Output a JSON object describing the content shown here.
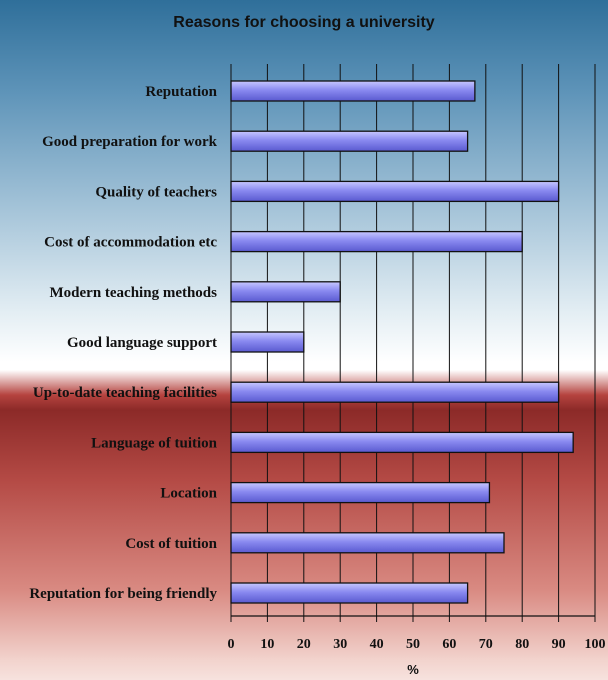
{
  "chart_data": {
    "type": "bar",
    "orientation": "horizontal",
    "title": "Reasons for choosing a university",
    "xlabel": "%",
    "ylabel": "",
    "xlim": [
      0,
      100
    ],
    "xticks": [
      0,
      10,
      20,
      30,
      40,
      50,
      60,
      70,
      80,
      90,
      100
    ],
    "grid": "vertical",
    "categories": [
      "Reputation",
      "Good preparation for work",
      "Quality of teachers",
      "Cost of accommodation etc",
      "Modern teaching methods",
      "Good language support",
      "Up-to-date teaching facilities",
      "Language of tuition",
      "Location",
      "Cost of tuition",
      "Reputation for being friendly"
    ],
    "values": [
      67,
      65,
      90,
      80,
      30,
      20,
      90,
      94,
      71,
      75,
      65
    ],
    "bar_color": "#8a8af0"
  }
}
